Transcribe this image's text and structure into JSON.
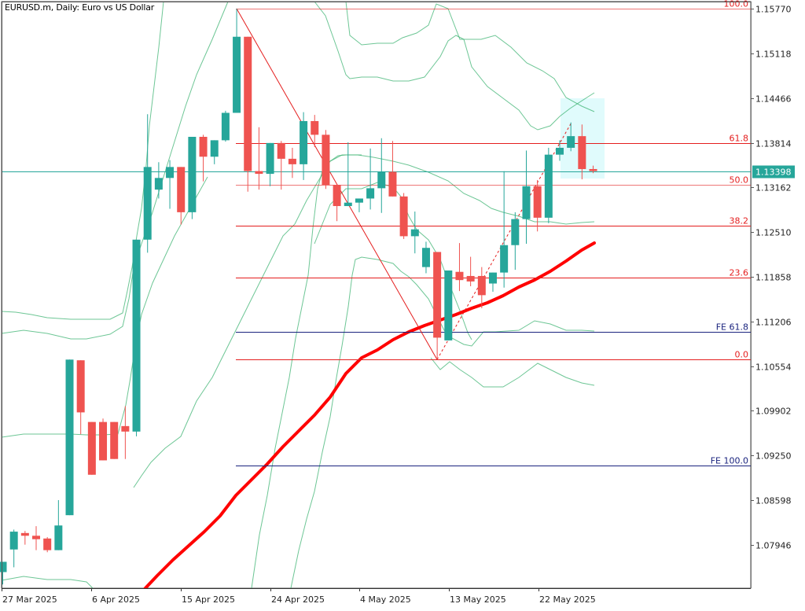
{
  "header": {
    "title": "EURUSD.m, Daily:  Euro vs US Dollar"
  },
  "price_axis": {
    "ticks": [
      "1.15770",
      "1.15118",
      "1.14466",
      "1.13814",
      "1.13162",
      "1.12510",
      "1.11858",
      "1.11206",
      "1.10554",
      "1.09902",
      "1.09250",
      "1.08598",
      "1.07946"
    ],
    "current_price": "1.13398",
    "current_price_color": "#26a69a"
  },
  "time_axis": {
    "ticks": [
      "27 Mar 2025",
      "6 Apr 2025",
      "15 Apr 2025",
      "24 Apr 2025",
      "4 May 2025",
      "13 May 2025",
      "22 May 2025"
    ]
  },
  "fibonacci": {
    "retracement_levels": [
      {
        "label": "100.0",
        "price": 1.1577
      },
      {
        "label": "61.8",
        "price": 1.1381
      },
      {
        "label": "50.0",
        "price": 1.132
      },
      {
        "label": "38.2",
        "price": 1.126
      },
      {
        "label": "23.6",
        "price": 1.1185
      },
      {
        "label": "0.0",
        "price": 1.1065
      }
    ],
    "expansion_levels": [
      {
        "label": "FE 61.8",
        "price": 1.1106
      },
      {
        "label": "FE 100.0",
        "price": 1.0911
      }
    ],
    "retracement_color": "#e41e1e",
    "expansion_color": "#1a237e"
  },
  "colors": {
    "bull": "#26a69a",
    "bear": "#ef5350",
    "bands": "#3cb371",
    "ma": "#ff0000",
    "highlight": "#e0fbfc"
  },
  "chart_data": {
    "type": "candlestick",
    "title": "EURUSD.m, Daily: Euro vs US Dollar",
    "xlabel": "",
    "ylabel": "",
    "ylim": [
      1.0737,
      1.159
    ],
    "grid": false,
    "current_price": 1.13398,
    "x_tick_labels": [
      "27 Mar 2025",
      "6 Apr 2025",
      "15 Apr 2025",
      "24 Apr 2025",
      "4 May 2025",
      "13 May 2025",
      "22 May 2025"
    ],
    "candles": [
      {
        "o": 1.0755,
        "h": 1.077,
        "l": 1.0737,
        "c": 1.077
      },
      {
        "o": 1.0788,
        "h": 1.0817,
        "l": 1.0762,
        "c": 1.0814
      },
      {
        "o": 1.0812,
        "h": 1.0815,
        "l": 1.0795,
        "c": 1.0808
      },
      {
        "o": 1.0808,
        "h": 1.0822,
        "l": 1.0787,
        "c": 1.0803
      },
      {
        "o": 1.0804,
        "h": 1.0806,
        "l": 1.0784,
        "c": 1.0787
      },
      {
        "o": 1.0787,
        "h": 1.086,
        "l": 1.079,
        "c": 1.0823
      },
      {
        "o": 1.0838,
        "h": 1.1053,
        "l": 1.0838,
        "c": 1.1065
      },
      {
        "o": 1.1064,
        "h": 1.1023,
        "l": 1.0956,
        "c": 1.0988
      },
      {
        "o": 1.0974,
        "h": 1.0949,
        "l": 1.0897,
        "c": 1.0897
      },
      {
        "o": 1.0974,
        "h": 1.0979,
        "l": 1.0918,
        "c": 1.0918
      },
      {
        "o": 1.0974,
        "h": 1.0971,
        "l": 1.092,
        "c": 1.092
      },
      {
        "o": 1.0968,
        "h": 1.0997,
        "l": 1.092,
        "c": 1.096
      },
      {
        "o": 1.096,
        "h": 1.124,
        "l": 1.0953,
        "c": 1.124
      },
      {
        "o": 1.124,
        "h": 1.1423,
        "l": 1.1221,
        "c": 1.1346
      },
      {
        "o": 1.1313,
        "h": 1.1353,
        "l": 1.13,
        "c": 1.133
      },
      {
        "o": 1.133,
        "h": 1.1356,
        "l": 1.1285,
        "c": 1.1346
      },
      {
        "o": 1.1346,
        "h": 1.1332,
        "l": 1.1262,
        "c": 1.128
      },
      {
        "o": 1.128,
        "h": 1.139,
        "l": 1.127,
        "c": 1.139
      },
      {
        "o": 1.139,
        "h": 1.1393,
        "l": 1.1325,
        "c": 1.1361
      },
      {
        "o": 1.1361,
        "h": 1.1375,
        "l": 1.135,
        "c": 1.1385
      },
      {
        "o": 1.1385,
        "h": 1.1428,
        "l": 1.1383,
        "c": 1.1425
      },
      {
        "o": 1.1425,
        "h": 1.1577,
        "l": 1.1428,
        "c": 1.1536
      },
      {
        "o": 1.1536,
        "h": 1.15,
        "l": 1.131,
        "c": 1.134
      },
      {
        "o": 1.134,
        "h": 1.1404,
        "l": 1.1313,
        "c": 1.1336
      },
      {
        "o": 1.1336,
        "h": 1.1381,
        "l": 1.1318,
        "c": 1.1381
      },
      {
        "o": 1.1381,
        "h": 1.1384,
        "l": 1.1313,
        "c": 1.1358
      },
      {
        "o": 1.1358,
        "h": 1.1374,
        "l": 1.133,
        "c": 1.135
      },
      {
        "o": 1.135,
        "h": 1.1426,
        "l": 1.1327,
        "c": 1.1413
      },
      {
        "o": 1.1413,
        "h": 1.1422,
        "l": 1.1375,
        "c": 1.1393
      },
      {
        "o": 1.1393,
        "h": 1.14,
        "l": 1.1314,
        "c": 1.132
      },
      {
        "o": 1.132,
        "h": 1.128,
        "l": 1.1267,
        "c": 1.1289
      },
      {
        "o": 1.1289,
        "h": 1.1382,
        "l": 1.1289,
        "c": 1.1294
      },
      {
        "o": 1.1294,
        "h": 1.13,
        "l": 1.128,
        "c": 1.13
      },
      {
        "o": 1.13,
        "h": 1.1373,
        "l": 1.1284,
        "c": 1.1315
      },
      {
        "o": 1.1315,
        "h": 1.1388,
        "l": 1.1279,
        "c": 1.1339
      },
      {
        "o": 1.1339,
        "h": 1.1384,
        "l": 1.1303,
        "c": 1.1303
      },
      {
        "o": 1.1303,
        "h": 1.1308,
        "l": 1.1241,
        "c": 1.1245
      },
      {
        "o": 1.1245,
        "h": 1.1281,
        "l": 1.122,
        "c": 1.1255
      },
      {
        "o": 1.12,
        "h": 1.1237,
        "l": 1.1191,
        "c": 1.1228
      },
      {
        "o": 1.1222,
        "h": 1.1214,
        "l": 1.1065,
        "c": 1.1097
      },
      {
        "o": 1.1093,
        "h": 1.1195,
        "l": 1.1093,
        "c": 1.1195
      },
      {
        "o": 1.1193,
        "h": 1.1235,
        "l": 1.1165,
        "c": 1.1181
      },
      {
        "o": 1.1187,
        "h": 1.1215,
        "l": 1.1172,
        "c": 1.1179
      },
      {
        "o": 1.1187,
        "h": 1.12,
        "l": 1.114,
        "c": 1.1159
      },
      {
        "o": 1.1176,
        "h": 1.1186,
        "l": 1.1164,
        "c": 1.1192
      },
      {
        "o": 1.1192,
        "h": 1.134,
        "l": 1.117,
        "c": 1.1232
      },
      {
        "o": 1.1232,
        "h": 1.128,
        "l": 1.1196,
        "c": 1.127
      },
      {
        "o": 1.127,
        "h": 1.137,
        "l": 1.1234,
        "c": 1.1318
      },
      {
        "o": 1.1318,
        "h": 1.1327,
        "l": 1.1252,
        "c": 1.1272
      },
      {
        "o": 1.1272,
        "h": 1.1374,
        "l": 1.1264,
        "c": 1.1364
      },
      {
        "o": 1.1364,
        "h": 1.1385,
        "l": 1.1355,
        "c": 1.1374
      },
      {
        "o": 1.1374,
        "h": 1.1411,
        "l": 1.1369,
        "c": 1.1391
      },
      {
        "o": 1.1391,
        "h": 1.1408,
        "l": 1.1328,
        "c": 1.1343
      },
      {
        "o": 1.1343,
        "h": 1.1348,
        "l": 1.1337,
        "c": 1.134
      }
    ],
    "ma_series": "thick red moving average rising from ~1.0740 (6 Apr) to ~1.1233 (latest)",
    "bollinger": "two sets of green bands (inner and outer), contracting into May",
    "fibonacci_retracement": {
      "high": 1.1577,
      "low": 1.1065,
      "levels": {
        "100.0": 1.1577,
        "61.8": 1.1381,
        "50.0": 1.132,
        "38.2": 1.126,
        "23.6": 1.1185,
        "0.0": 1.1065
      }
    },
    "fibonacci_expansion": {
      "FE 61.8": 1.1106,
      "FE 100.0": 1.0911
    }
  }
}
